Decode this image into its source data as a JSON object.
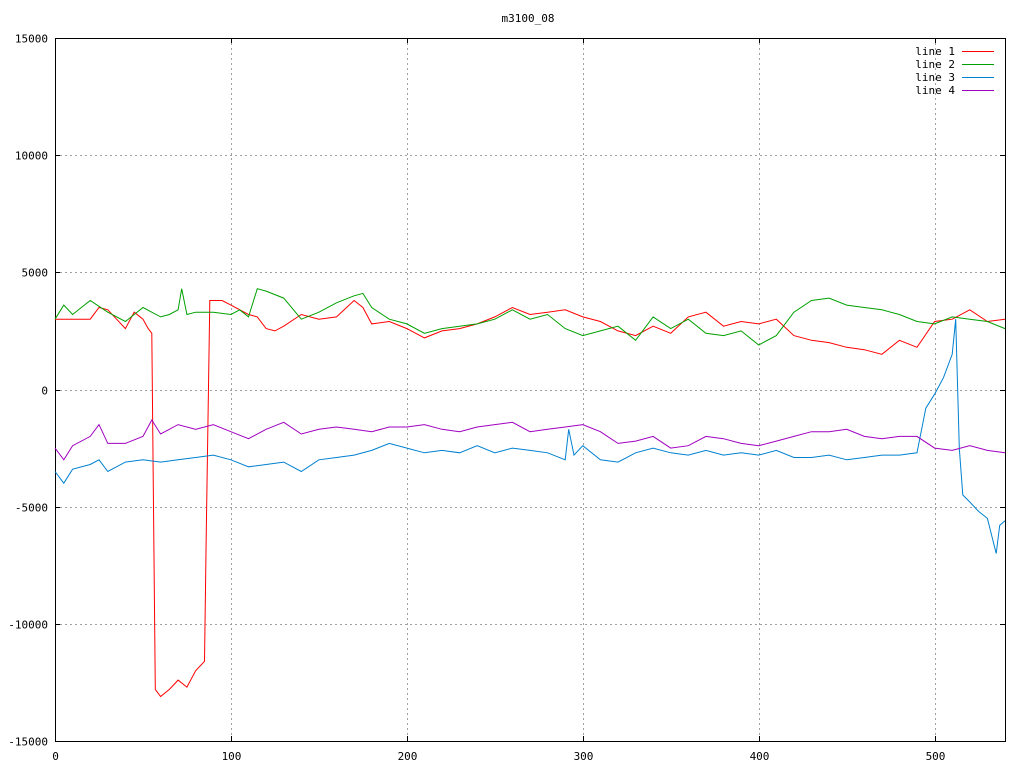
{
  "chart_data": {
    "type": "line",
    "title": "m3100_08",
    "xlabel": "",
    "ylabel": "",
    "xlim": [
      0,
      540
    ],
    "ylim": [
      -15000,
      15000
    ],
    "grid": true,
    "legend_position": "top-right",
    "x_ticks": [
      "0",
      "100",
      "200",
      "300",
      "400",
      "500"
    ],
    "y_ticks": [
      "15000",
      "10000",
      "5000",
      "0",
      "-5000",
      "-10000",
      "-15000"
    ],
    "series": [
      {
        "name": "line 1",
        "color": "#ff0000",
        "points": [
          [
            0,
            3000
          ],
          [
            10,
            3000
          ],
          [
            20,
            3000
          ],
          [
            25,
            3500
          ],
          [
            30,
            3400
          ],
          [
            35,
            3000
          ],
          [
            40,
            2600
          ],
          [
            45,
            3300
          ],
          [
            50,
            3000
          ],
          [
            53,
            2600
          ],
          [
            55,
            2400
          ],
          [
            56,
            -5000
          ],
          [
            57,
            -12800
          ],
          [
            60,
            -13100
          ],
          [
            65,
            -12800
          ],
          [
            70,
            -12400
          ],
          [
            75,
            -12700
          ],
          [
            80,
            -12000
          ],
          [
            85,
            -11600
          ],
          [
            86,
            -6000
          ],
          [
            87,
            -1000
          ],
          [
            88,
            3800
          ],
          [
            95,
            3800
          ],
          [
            100,
            3600
          ],
          [
            110,
            3200
          ],
          [
            115,
            3100
          ],
          [
            120,
            2600
          ],
          [
            125,
            2500
          ],
          [
            130,
            2700
          ],
          [
            140,
            3200
          ],
          [
            150,
            3000
          ],
          [
            160,
            3100
          ],
          [
            170,
            3800
          ],
          [
            175,
            3500
          ],
          [
            180,
            2800
          ],
          [
            190,
            2900
          ],
          [
            200,
            2600
          ],
          [
            210,
            2200
          ],
          [
            220,
            2500
          ],
          [
            230,
            2600
          ],
          [
            240,
            2800
          ],
          [
            250,
            3100
          ],
          [
            260,
            3500
          ],
          [
            270,
            3200
          ],
          [
            280,
            3300
          ],
          [
            290,
            3400
          ],
          [
            300,
            3100
          ],
          [
            310,
            2900
          ],
          [
            320,
            2500
          ],
          [
            330,
            2300
          ],
          [
            340,
            2700
          ],
          [
            350,
            2400
          ],
          [
            360,
            3100
          ],
          [
            370,
            3300
          ],
          [
            380,
            2700
          ],
          [
            390,
            2900
          ],
          [
            400,
            2800
          ],
          [
            410,
            3000
          ],
          [
            420,
            2300
          ],
          [
            430,
            2100
          ],
          [
            440,
            2000
          ],
          [
            450,
            1800
          ],
          [
            460,
            1700
          ],
          [
            470,
            1500
          ],
          [
            480,
            2100
          ],
          [
            490,
            1800
          ],
          [
            500,
            2900
          ],
          [
            510,
            3000
          ],
          [
            520,
            3400
          ],
          [
            530,
            2900
          ],
          [
            540,
            3000
          ]
        ]
      },
      {
        "name": "line 2",
        "color": "#00a000",
        "points": [
          [
            0,
            3000
          ],
          [
            5,
            3600
          ],
          [
            10,
            3200
          ],
          [
            20,
            3800
          ],
          [
            30,
            3300
          ],
          [
            40,
            2900
          ],
          [
            50,
            3500
          ],
          [
            60,
            3100
          ],
          [
            65,
            3200
          ],
          [
            70,
            3400
          ],
          [
            72,
            4300
          ],
          [
            75,
            3200
          ],
          [
            80,
            3300
          ],
          [
            90,
            3300
          ],
          [
            100,
            3200
          ],
          [
            105,
            3400
          ],
          [
            110,
            3100
          ],
          [
            115,
            4300
          ],
          [
            120,
            4200
          ],
          [
            130,
            3900
          ],
          [
            140,
            3000
          ],
          [
            150,
            3300
          ],
          [
            160,
            3700
          ],
          [
            170,
            4000
          ],
          [
            175,
            4100
          ],
          [
            180,
            3500
          ],
          [
            190,
            3000
          ],
          [
            200,
            2800
          ],
          [
            210,
            2400
          ],
          [
            220,
            2600
          ],
          [
            230,
            2700
          ],
          [
            240,
            2800
          ],
          [
            250,
            3000
          ],
          [
            260,
            3400
          ],
          [
            270,
            3000
          ],
          [
            280,
            3200
          ],
          [
            290,
            2600
          ],
          [
            300,
            2300
          ],
          [
            310,
            2500
          ],
          [
            320,
            2700
          ],
          [
            330,
            2100
          ],
          [
            340,
            3100
          ],
          [
            350,
            2600
          ],
          [
            360,
            3000
          ],
          [
            370,
            2400
          ],
          [
            380,
            2300
          ],
          [
            390,
            2500
          ],
          [
            400,
            1900
          ],
          [
            410,
            2300
          ],
          [
            420,
            3300
          ],
          [
            430,
            3800
          ],
          [
            440,
            3900
          ],
          [
            450,
            3600
          ],
          [
            460,
            3500
          ],
          [
            470,
            3400
          ],
          [
            480,
            3200
          ],
          [
            490,
            2900
          ],
          [
            500,
            2800
          ],
          [
            510,
            3100
          ],
          [
            520,
            3000
          ],
          [
            530,
            2900
          ],
          [
            540,
            2600
          ]
        ]
      },
      {
        "name": "line 3",
        "color": "#0080d0",
        "points": [
          [
            0,
            -3500
          ],
          [
            5,
            -4000
          ],
          [
            10,
            -3400
          ],
          [
            20,
            -3200
          ],
          [
            25,
            -3000
          ],
          [
            30,
            -3500
          ],
          [
            40,
            -3100
          ],
          [
            50,
            -3000
          ],
          [
            60,
            -3100
          ],
          [
            70,
            -3000
          ],
          [
            80,
            -2900
          ],
          [
            90,
            -2800
          ],
          [
            100,
            -3000
          ],
          [
            110,
            -3300
          ],
          [
            120,
            -3200
          ],
          [
            130,
            -3100
          ],
          [
            140,
            -3500
          ],
          [
            150,
            -3000
          ],
          [
            160,
            -2900
          ],
          [
            170,
            -2800
          ],
          [
            180,
            -2600
          ],
          [
            190,
            -2300
          ],
          [
            200,
            -2500
          ],
          [
            210,
            -2700
          ],
          [
            220,
            -2600
          ],
          [
            230,
            -2700
          ],
          [
            240,
            -2400
          ],
          [
            250,
            -2700
          ],
          [
            260,
            -2500
          ],
          [
            270,
            -2600
          ],
          [
            280,
            -2700
          ],
          [
            290,
            -3000
          ],
          [
            292,
            -1700
          ],
          [
            295,
            -2800
          ],
          [
            300,
            -2400
          ],
          [
            310,
            -3000
          ],
          [
            320,
            -3100
          ],
          [
            330,
            -2700
          ],
          [
            340,
            -2500
          ],
          [
            350,
            -2700
          ],
          [
            360,
            -2800
          ],
          [
            370,
            -2600
          ],
          [
            380,
            -2800
          ],
          [
            390,
            -2700
          ],
          [
            400,
            -2800
          ],
          [
            410,
            -2600
          ],
          [
            420,
            -2900
          ],
          [
            430,
            -2900
          ],
          [
            440,
            -2800
          ],
          [
            450,
            -3000
          ],
          [
            460,
            -2900
          ],
          [
            470,
            -2800
          ],
          [
            480,
            -2800
          ],
          [
            490,
            -2700
          ],
          [
            495,
            -800
          ],
          [
            500,
            -200
          ],
          [
            505,
            500
          ],
          [
            510,
            1500
          ],
          [
            512,
            3000
          ],
          [
            514,
            -2500
          ],
          [
            516,
            -4500
          ],
          [
            520,
            -4800
          ],
          [
            525,
            -5200
          ],
          [
            530,
            -5500
          ],
          [
            535,
            -7000
          ],
          [
            537,
            -5800
          ],
          [
            540,
            -5600
          ]
        ]
      },
      {
        "name": "line 4",
        "color": "#a000c0",
        "points": [
          [
            0,
            -2500
          ],
          [
            5,
            -3000
          ],
          [
            10,
            -2400
          ],
          [
            20,
            -2000
          ],
          [
            25,
            -1500
          ],
          [
            30,
            -2300
          ],
          [
            40,
            -2300
          ],
          [
            50,
            -2000
          ],
          [
            55,
            -1300
          ],
          [
            60,
            -1900
          ],
          [
            70,
            -1500
          ],
          [
            80,
            -1700
          ],
          [
            90,
            -1500
          ],
          [
            100,
            -1800
          ],
          [
            110,
            -2100
          ],
          [
            120,
            -1700
          ],
          [
            130,
            -1400
          ],
          [
            140,
            -1900
          ],
          [
            150,
            -1700
          ],
          [
            160,
            -1600
          ],
          [
            170,
            -1700
          ],
          [
            180,
            -1800
          ],
          [
            190,
            -1600
          ],
          [
            200,
            -1600
          ],
          [
            210,
            -1500
          ],
          [
            220,
            -1700
          ],
          [
            230,
            -1800
          ],
          [
            240,
            -1600
          ],
          [
            250,
            -1500
          ],
          [
            260,
            -1400
          ],
          [
            270,
            -1800
          ],
          [
            280,
            -1700
          ],
          [
            290,
            -1600
          ],
          [
            300,
            -1500
          ],
          [
            310,
            -1800
          ],
          [
            320,
            -2300
          ],
          [
            330,
            -2200
          ],
          [
            340,
            -2000
          ],
          [
            350,
            -2500
          ],
          [
            360,
            -2400
          ],
          [
            370,
            -2000
          ],
          [
            380,
            -2100
          ],
          [
            390,
            -2300
          ],
          [
            400,
            -2400
          ],
          [
            410,
            -2200
          ],
          [
            420,
            -2000
          ],
          [
            430,
            -1800
          ],
          [
            440,
            -1800
          ],
          [
            450,
            -1700
          ],
          [
            460,
            -2000
          ],
          [
            470,
            -2100
          ],
          [
            480,
            -2000
          ],
          [
            490,
            -2000
          ],
          [
            500,
            -2500
          ],
          [
            510,
            -2600
          ],
          [
            520,
            -2400
          ],
          [
            530,
            -2600
          ],
          [
            540,
            -2700
          ]
        ]
      }
    ]
  }
}
